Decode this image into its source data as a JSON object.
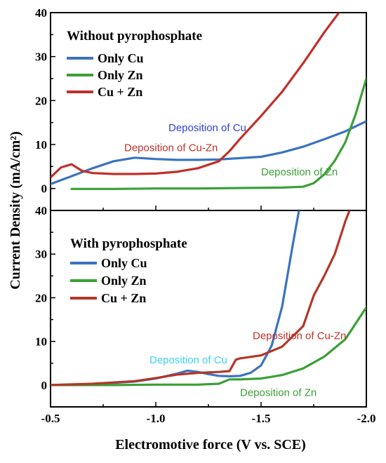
{
  "figure": {
    "y_axis_title": "Current Density  (mA/cm²)",
    "x_axis_title": "Electromotive force (V vs. SCE)"
  },
  "colors": {
    "cu": "#3a73c0",
    "zn": "#3aa035",
    "cuzn": "#c0302a",
    "ann_blue": "#2f3fd8",
    "ann_cyan": "#39d5f0"
  },
  "chart_data": [
    {
      "type": "line",
      "panel_title": "Without pyrophosphate",
      "xlim": [
        -0.5,
        -2.0
      ],
      "ylim": [
        -5,
        40
      ],
      "x_ticks": [
        -0.5,
        -1.0,
        -1.5,
        -2.0
      ],
      "x_tick_labels": [
        "-0.5",
        "-1.0",
        "-1.5",
        "-2.0"
      ],
      "y_ticks": [
        0,
        10,
        20,
        30,
        40
      ],
      "y_tick_labels": [
        "0",
        "10",
        "20",
        "30",
        "40"
      ],
      "series": [
        {
          "name": "Only Cu",
          "color": "#3a73c0",
          "x": [
            -0.5,
            -0.6,
            -0.7,
            -0.8,
            -0.9,
            -1.0,
            -1.1,
            -1.2,
            -1.3,
            -1.4,
            -1.5,
            -1.6,
            -1.7,
            -1.8,
            -1.9,
            -2.0
          ],
          "y": [
            1.0,
            2.8,
            4.6,
            6.2,
            7.0,
            6.7,
            6.5,
            6.5,
            6.6,
            6.9,
            7.2,
            8.2,
            9.5,
            11.2,
            13.0,
            15.3
          ]
        },
        {
          "name": "Only Zn",
          "color": "#3aa035",
          "x": [
            -0.6,
            -0.8,
            -1.0,
            -1.2,
            -1.4,
            -1.6,
            -1.7,
            -1.75,
            -1.8,
            -1.85,
            -1.9,
            -1.95,
            -2.0
          ],
          "y": [
            -0.1,
            -0.1,
            0.0,
            0.0,
            0.1,
            0.2,
            0.4,
            1.2,
            3.2,
            6.3,
            10.5,
            17.0,
            25.0
          ]
        },
        {
          "name": "Cu + Zn",
          "color": "#c0302a",
          "x": [
            -0.5,
            -0.55,
            -0.6,
            -0.65,
            -0.7,
            -0.8,
            -0.9,
            -1.0,
            -1.1,
            -1.2,
            -1.3,
            -1.35,
            -1.4,
            -1.5,
            -1.6,
            -1.7,
            -1.8,
            -1.87
          ],
          "y": [
            2.5,
            4.8,
            5.5,
            4.0,
            3.5,
            3.3,
            3.3,
            3.4,
            3.8,
            4.6,
            6.2,
            8.5,
            11.3,
            16.5,
            22.0,
            28.5,
            35.5,
            40.0
          ]
        }
      ],
      "annotations": [
        {
          "text": "Deposition of Cu",
          "x": -1.06,
          "y": 13.0,
          "color": "#2f3fd8"
        },
        {
          "text": "Deposition of Cu-Zn",
          "x": -0.85,
          "y": 8.5,
          "color": "#c0302a"
        },
        {
          "text": "Deposition of Zn",
          "x": -1.5,
          "y": 3.0,
          "color": "#3aa035"
        }
      ]
    },
    {
      "type": "line",
      "panel_title": "With pyrophosphate",
      "xlim": [
        -0.5,
        -2.0
      ],
      "ylim": [
        -5,
        40
      ],
      "x_ticks": [
        -0.5,
        -1.0,
        -1.5,
        -2.0
      ],
      "x_tick_labels": [
        "-0.5",
        "-1.0",
        "-1.5",
        "-2.0"
      ],
      "y_ticks": [
        0,
        10,
        20,
        30,
        40
      ],
      "y_tick_labels": [
        "0",
        "10",
        "20",
        "30",
        "40"
      ],
      "series": [
        {
          "name": "Only Cu",
          "color": "#3a73c0",
          "x": [
            -0.5,
            -0.7,
            -0.9,
            -1.0,
            -1.1,
            -1.15,
            -1.2,
            -1.25,
            -1.3,
            -1.35,
            -1.4,
            -1.45,
            -1.5,
            -1.55,
            -1.6,
            -1.65,
            -1.68
          ],
          "y": [
            0.0,
            0.2,
            0.8,
            1.5,
            2.6,
            3.3,
            3.0,
            2.5,
            2.1,
            2.0,
            2.1,
            2.8,
            4.5,
            9.0,
            18.0,
            32.0,
            40.0
          ]
        },
        {
          "name": "Only Zn",
          "color": "#3aa035",
          "x": [
            -0.5,
            -0.8,
            -1.0,
            -1.2,
            -1.3,
            -1.35,
            -1.4,
            -1.5,
            -1.6,
            -1.7,
            -1.8,
            -1.9,
            -2.0
          ],
          "y": [
            0.0,
            0.0,
            0.1,
            0.1,
            0.3,
            1.3,
            1.3,
            1.5,
            2.3,
            3.8,
            6.5,
            10.5,
            17.8
          ]
        },
        {
          "name": "Cu + Zn",
          "color": "#b3372a",
          "x": [
            -0.5,
            -0.7,
            -0.9,
            -1.0,
            -1.1,
            -1.2,
            -1.3,
            -1.35,
            -1.38,
            -1.4,
            -1.5,
            -1.6,
            -1.7,
            -1.75,
            -1.8,
            -1.85,
            -1.9,
            -1.92
          ],
          "y": [
            0.0,
            0.3,
            0.9,
            1.6,
            2.4,
            2.8,
            3.0,
            3.2,
            5.8,
            6.1,
            6.8,
            8.8,
            13.5,
            20.5,
            25.0,
            30.0,
            37.5,
            40.0
          ]
        }
      ],
      "annotations": [
        {
          "text": "Deposition of Cu-Zn",
          "x": -1.46,
          "y": 10.5,
          "color": "#c0302a"
        },
        {
          "text": "Deposition of Cu",
          "x": -0.97,
          "y": 5.0,
          "color": "#39d5f0"
        },
        {
          "text": "Deposition of Zn",
          "x": -1.4,
          "y": -2.5,
          "color": "#3aa035"
        }
      ]
    }
  ]
}
